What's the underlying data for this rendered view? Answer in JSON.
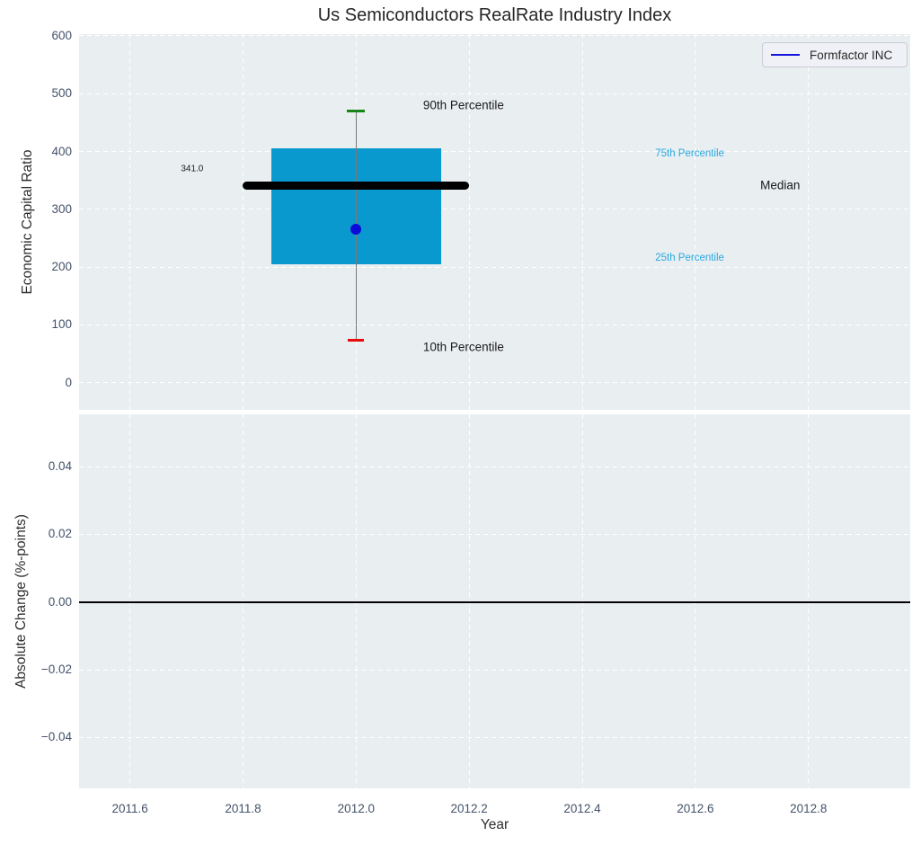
{
  "chart_data": [
    {
      "type": "box",
      "title": "Us Semiconductors RealRate Industry Index",
      "ylabel": "Economic Capital Ratio",
      "xlim": [
        2011.51,
        2012.98
      ],
      "ylim": [
        -47,
        603
      ],
      "yticks": [
        0,
        100,
        200,
        300,
        400,
        500,
        600
      ],
      "ytick_labels": [
        "0",
        "100",
        "200",
        "300",
        "400",
        "500",
        "600"
      ],
      "xticks": [
        2011.6,
        2011.8,
        2012.0,
        2012.2,
        2012.4,
        2012.6,
        2012.8
      ],
      "grid": true,
      "legend": {
        "label": "Formfactor INC",
        "position": "upper right",
        "line_color": "#1414dd"
      },
      "box": {
        "x_center": 2012.0,
        "p10": 73,
        "p25": 205,
        "median": 341.0,
        "p75": 405,
        "p90": 470,
        "box_width_years": 0.3,
        "median_line_width_years": 0.4,
        "median_label": "341.0",
        "box_color": "#0999ce",
        "median_color": "#000000",
        "whisker_color": "#7a7a7a",
        "p90_cap_color": "#168416",
        "p10_cap_color": "#e80b0b"
      },
      "company_point": {
        "label": "Formfactor INC",
        "x": 2012.0,
        "y": 266,
        "color": "#0b0bd8"
      },
      "annotations": [
        {
          "text": "90th Percentile",
          "x": 2012.19,
          "y": 480,
          "color": "#1a1a1a",
          "size": 13.5
        },
        {
          "text": "10th Percentile",
          "x": 2012.19,
          "y": 62,
          "color": "#1a1a1a",
          "size": 13.5
        },
        {
          "text": "75th Percentile",
          "x": 2012.59,
          "y": 396,
          "color": "#29a9df",
          "size": 11.5
        },
        {
          "text": "25th Percentile",
          "x": 2012.59,
          "y": 216,
          "color": "#29a9df",
          "size": 11.5
        },
        {
          "text": "Median",
          "x": 2012.75,
          "y": 342,
          "color": "#1a1a1a",
          "size": 13.5
        },
        {
          "text": "341.0",
          "x": 2011.71,
          "y": 370,
          "color": "#1a1a1a",
          "size": 10
        }
      ]
    },
    {
      "type": "line",
      "ylabel": "Absolute Change (%-points)",
      "xlabel": "Year",
      "xlim": [
        2011.51,
        2012.98
      ],
      "ylim": [
        -0.055,
        0.0554
      ],
      "yticks": [
        -0.04,
        -0.02,
        0.0,
        0.02,
        0.04
      ],
      "ytick_labels": [
        "−0.04",
        "−0.02",
        "0.00",
        "0.02",
        "0.04"
      ],
      "xticks": [
        2011.6,
        2011.8,
        2012.0,
        2012.2,
        2012.4,
        2012.6,
        2012.8
      ],
      "xtick_labels": [
        "2011.6",
        "2011.8",
        "2012.0",
        "2012.2",
        "2012.4",
        "2012.6",
        "2012.8"
      ],
      "zero_line": 0.0,
      "series": []
    }
  ],
  "colors": {
    "panel_bg": "#e9eef1",
    "grid": "#ffffff",
    "tick_label": "#44526a",
    "axis_label": "#2e2e2e"
  }
}
